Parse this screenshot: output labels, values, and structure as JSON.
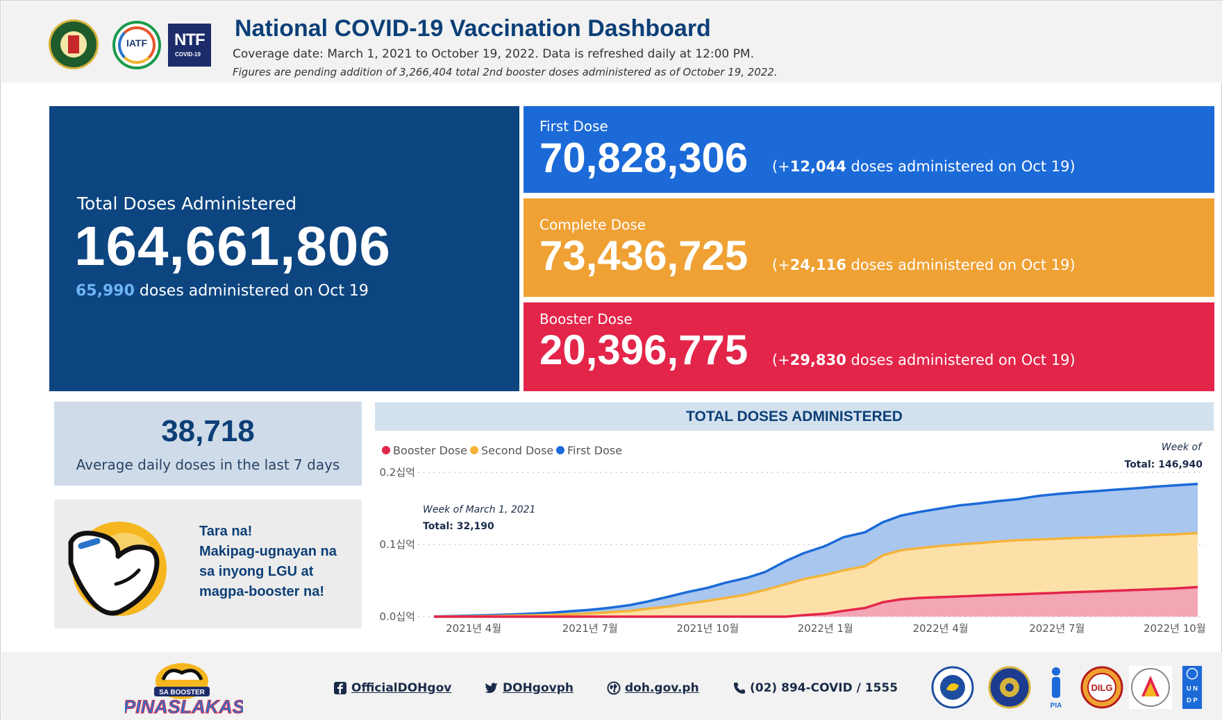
{
  "header": {
    "title": "National COVID-19 Vaccination Dashboard",
    "subtitle": "Coverage date: March 1, 2021 to October 19, 2022. Data is refreshed daily at 12:00 PM.",
    "note": "Figures are pending addition of 3,266,404 total 2nd booster doses administered as of October 19, 2022.",
    "logos": {
      "iatf": "IATF",
      "ntf": "NTF",
      "ntf_sub": "COVID-19"
    }
  },
  "total": {
    "label": "Total Doses Administered",
    "value": "164,661,806",
    "daily_value": "65,990",
    "daily_text": "doses administered on Oct 19"
  },
  "doses": {
    "first": {
      "label": "First Dose",
      "value": "70,828,306",
      "delta_prefix": "(+",
      "delta": "12,044",
      "delta_suffix": " doses administered on Oct 19)",
      "color": "#1b6ad8"
    },
    "complete": {
      "label": "Complete Dose",
      "value": "73,436,725",
      "delta_prefix": "(+",
      "delta": "24,116",
      "delta_suffix": " doses administered on Oct 19)",
      "color": "#efa134"
    },
    "booster": {
      "label": "Booster Dose",
      "value": "20,396,775",
      "delta_prefix": "(+",
      "delta": "29,830",
      "delta_suffix": " doses administered on Oct 19)",
      "color": "#e3254a"
    }
  },
  "average": {
    "value": "38,718",
    "label": "Average daily doses in the last 7 days"
  },
  "promo": {
    "lines": [
      "Tara na!",
      "Makipag-ugnayan na",
      "sa inyong LGU at",
      "magpa-booster na!"
    ]
  },
  "chart_data": {
    "type": "area",
    "title": "TOTAL DOSES ADMINISTERED",
    "x": [
      "2021-03-01",
      "2021-03-15",
      "2021-04-01",
      "2021-04-15",
      "2021-05-01",
      "2021-05-15",
      "2021-06-01",
      "2021-06-15",
      "2021-07-01",
      "2021-07-15",
      "2021-08-01",
      "2021-08-15",
      "2021-09-01",
      "2021-09-15",
      "2021-10-01",
      "2021-10-15",
      "2021-11-01",
      "2021-11-15",
      "2021-12-01",
      "2021-12-15",
      "2022-01-01",
      "2022-01-15",
      "2022-02-01",
      "2022-02-15",
      "2022-03-01",
      "2022-03-15",
      "2022-04-01",
      "2022-04-15",
      "2022-05-01",
      "2022-05-15",
      "2022-06-01",
      "2022-06-15",
      "2022-07-01",
      "2022-07-15",
      "2022-08-01",
      "2022-08-15",
      "2022-09-01",
      "2022-09-15",
      "2022-10-01",
      "2022-10-19"
    ],
    "series": [
      {
        "name": "First Dose",
        "color": "#1b6ad8",
        "fill": "#a9c6ef",
        "values": [
          0.0003,
          0.0008,
          0.0015,
          0.0022,
          0.003,
          0.004,
          0.0055,
          0.0075,
          0.0095,
          0.012,
          0.016,
          0.021,
          0.028,
          0.034,
          0.04,
          0.047,
          0.054,
          0.062,
          0.077,
          0.088,
          0.098,
          0.11,
          0.117,
          0.131,
          0.14,
          0.145,
          0.15,
          0.154,
          0.157,
          0.16,
          0.163,
          0.167,
          0.17,
          0.172,
          0.174,
          0.176,
          0.178,
          0.18,
          0.182,
          0.184
        ]
      },
      {
        "name": "Second Dose",
        "color": "#f4b43a",
        "fill": "#fde0a8",
        "values": [
          0.0001,
          0.0002,
          0.0005,
          0.0009,
          0.0013,
          0.0018,
          0.0025,
          0.0033,
          0.0045,
          0.006,
          0.008,
          0.011,
          0.014,
          0.018,
          0.022,
          0.026,
          0.031,
          0.037,
          0.045,
          0.052,
          0.058,
          0.064,
          0.07,
          0.085,
          0.092,
          0.095,
          0.098,
          0.1,
          0.102,
          0.104,
          0.106,
          0.107,
          0.108,
          0.109,
          0.11,
          0.111,
          0.112,
          0.113,
          0.114,
          0.116
        ]
      },
      {
        "name": "Booster Dose",
        "color": "#e3254a",
        "fill": "#f3a6b4",
        "values": [
          0,
          0,
          0,
          0,
          0,
          0,
          0,
          0,
          0,
          0,
          0,
          0,
          0,
          0,
          0,
          0,
          0,
          0,
          0,
          0.002,
          0.004,
          0.008,
          0.012,
          0.02,
          0.024,
          0.026,
          0.027,
          0.028,
          0.029,
          0.03,
          0.031,
          0.032,
          0.033,
          0.034,
          0.035,
          0.036,
          0.037,
          0.038,
          0.039,
          0.041
        ]
      }
    ],
    "yticks": [
      "0.0십억",
      "0.1십억",
      "0.2십억"
    ],
    "ylim": [
      0,
      0.2
    ],
    "xticks": [
      {
        "label": "2021년 4월",
        "date": "2021-04-01"
      },
      {
        "label": "2021년 7월",
        "date": "2021-07-01"
      },
      {
        "label": "2021년 10월",
        "date": "2021-10-01"
      },
      {
        "label": "2022년 1월",
        "date": "2022-01-01"
      },
      {
        "label": "2022년 4월",
        "date": "2022-04-01"
      },
      {
        "label": "2022년 7월",
        "date": "2022-07-01"
      },
      {
        "label": "2022년 10월",
        "date": "2022-10-01"
      }
    ],
    "legend": {
      "placement": "top-left",
      "items": [
        "Booster Dose",
        "Second Dose",
        "First Dose"
      ]
    },
    "annotations": {
      "start_week": "Week of March 1, 2021",
      "start_total": "Total: 32,190",
      "end_week": "Week of",
      "end_total": "Total: 146,940"
    },
    "grid": true
  },
  "footer": {
    "logo_text_top": "SA BOOSTER",
    "logo_text_main": "PINASLAKAS",
    "facebook": "OfficialDOHgov",
    "twitter": "DOHgovph",
    "website": "doh.gov.ph",
    "phone": "(02) 894-COVID / 1555",
    "partners": {
      "pia": "PIA",
      "dilg": "DILG",
      "undp_top": "U N",
      "undp_bottom": "D P"
    }
  }
}
